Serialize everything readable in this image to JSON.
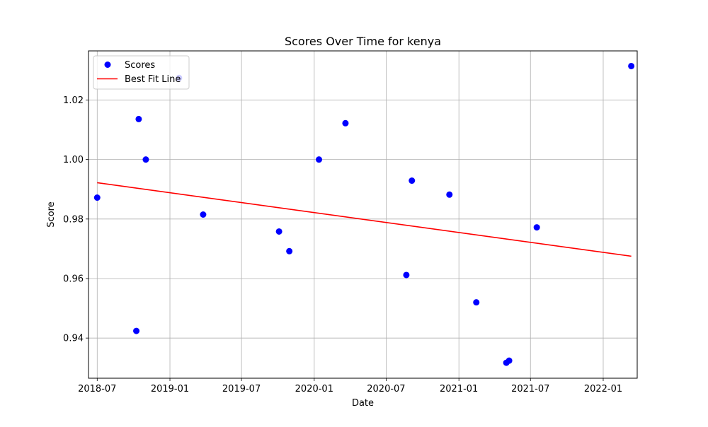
{
  "chart_data": {
    "type": "scatter",
    "title": "Scores Over Time for kenya",
    "xlabel": "Date",
    "ylabel": "Score",
    "x_axis_type": "date",
    "xlim": [
      "2018-06-09",
      "2022-03-28"
    ],
    "ylim": [
      0.9265,
      1.0365
    ],
    "x_ticks": [
      "2018-07-01",
      "2019-01-01",
      "2019-07-01",
      "2020-01-01",
      "2020-07-01",
      "2021-01-01",
      "2021-07-01",
      "2022-01-01"
    ],
    "x_tick_labels": [
      "2018-07",
      "2019-01",
      "2019-07",
      "2020-01",
      "2020-07",
      "2021-01",
      "2021-07",
      "2022-01"
    ],
    "y_ticks": [
      0.94,
      0.96,
      0.98,
      1.0,
      1.02
    ],
    "y_tick_labels": [
      "0.94",
      "0.96",
      "0.98",
      "1.00",
      "1.02"
    ],
    "grid": true,
    "legend_position": "top-left",
    "colors": {
      "points": "#0000ff",
      "line": "#ff0000",
      "grid": "#b0b0b0"
    },
    "series": [
      {
        "name": "Scores",
        "kind": "scatter",
        "points": [
          {
            "x": "2018-07-01",
            "y": 0.9872
          },
          {
            "x": "2018-10-08",
            "y": 0.9424
          },
          {
            "x": "2018-10-14",
            "y": 1.0136
          },
          {
            "x": "2018-11-01",
            "y": 1.0
          },
          {
            "x": "2019-01-24",
            "y": 1.0274
          },
          {
            "x": "2019-03-26",
            "y": 0.9815
          },
          {
            "x": "2019-10-04",
            "y": 0.9758
          },
          {
            "x": "2019-10-30",
            "y": 0.9692
          },
          {
            "x": "2020-01-13",
            "y": 1.0
          },
          {
            "x": "2020-03-20",
            "y": 1.0122
          },
          {
            "x": "2020-08-21",
            "y": 0.9612
          },
          {
            "x": "2020-09-04",
            "y": 0.9929
          },
          {
            "x": "2020-12-08",
            "y": 0.9882
          },
          {
            "x": "2021-02-14",
            "y": 0.952
          },
          {
            "x": "2021-05-01",
            "y": 0.9317
          },
          {
            "x": "2021-05-08",
            "y": 0.9324
          },
          {
            "x": "2021-07-17",
            "y": 0.9772
          },
          {
            "x": "2022-03-13",
            "y": 1.0314
          }
        ]
      },
      {
        "name": "Best Fit Line",
        "kind": "line",
        "points": [
          {
            "x": "2018-07-01",
            "y": 0.9922
          },
          {
            "x": "2022-03-13",
            "y": 0.9675
          }
        ]
      }
    ]
  }
}
